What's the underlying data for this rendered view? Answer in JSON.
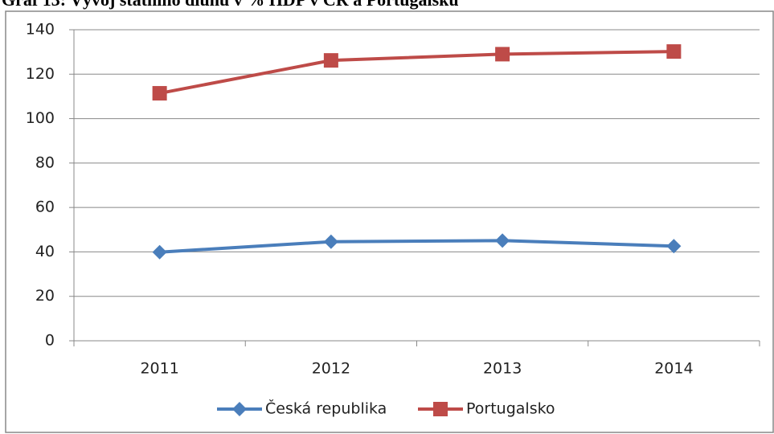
{
  "chart_data": {
    "type": "line",
    "title": "Graf 13: Vývoj státního dluhu v % HDP v ČR a Portugalsku",
    "categories": [
      "2011",
      "2012",
      "2013",
      "2014"
    ],
    "series": [
      {
        "name": "Česká republika",
        "color": "#4a7ebb",
        "marker": "diamond",
        "values": [
          39.9,
          44.6,
          45.1,
          42.6
        ]
      },
      {
        "name": "Portugalsko",
        "color": "#be4b48",
        "marker": "square",
        "values": [
          111.4,
          126.2,
          129.0,
          130.2
        ]
      }
    ],
    "ylim": [
      0,
      140
    ],
    "yticks": [
      0,
      20,
      40,
      60,
      80,
      100,
      120,
      140
    ],
    "grid": true,
    "legend": "bottom"
  }
}
